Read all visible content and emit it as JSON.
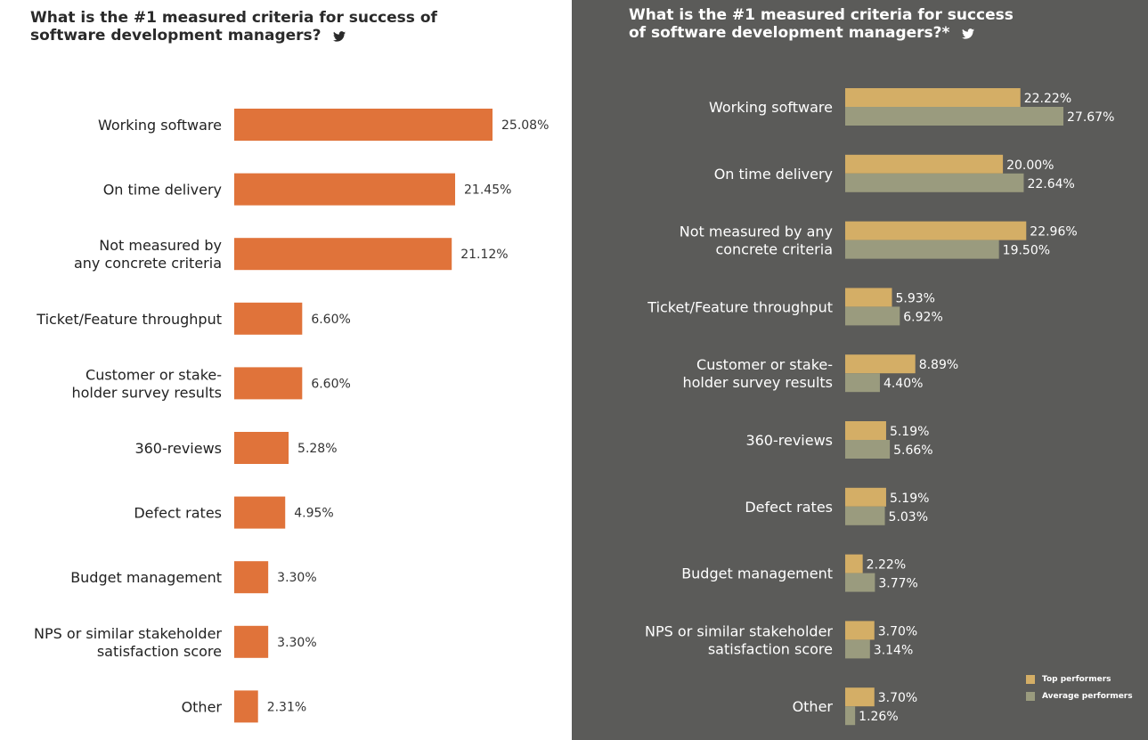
{
  "colors": {
    "left_bar": "#e0733a",
    "top_performers": "#d4ae66",
    "average_performers": "#9a9b7e",
    "left_background": "#ffffff",
    "right_background": "#5b5b59"
  },
  "icons": {
    "title_icon": "twitter-bird-icon"
  },
  "left": {
    "title_line1": "What is the #1 measured criteria for success of",
    "title_line2": "software development managers?"
  },
  "right": {
    "title_line1": "What is the #1 measured criteria for success",
    "title_line2": "of software development managers?*"
  },
  "legend": {
    "top_performers": "Top performers",
    "average_performers": "Average performers"
  },
  "chart_data": [
    {
      "type": "bar",
      "orientation": "horizontal",
      "title": "What is the #1 measured criteria for success of software development managers?",
      "categories": [
        "Working software",
        "On time delivery",
        "Not measured by any concrete criteria",
        "Ticket/Feature throughput",
        "Customer or stakeholder survey results",
        "360-reviews",
        "Defect rates",
        "Budget management",
        "NPS or similar stakeholder satisfaction score",
        "Other"
      ],
      "category_lines": [
        [
          "Working software"
        ],
        [
          "On time delivery"
        ],
        [
          "Not measured by",
          "any concrete criteria"
        ],
        [
          "Ticket/Feature throughput"
        ],
        [
          "Customer or stake-",
          "holder survey results"
        ],
        [
          "360-reviews"
        ],
        [
          "Defect rates"
        ],
        [
          "Budget management"
        ],
        [
          "NPS or similar stakeholder",
          "satisfaction score"
        ],
        [
          "Other"
        ]
      ],
      "values": [
        25.08,
        21.45,
        21.12,
        6.6,
        6.6,
        5.28,
        4.95,
        3.3,
        3.3,
        2.31
      ],
      "value_labels": [
        "25.08%",
        "21.45%",
        "21.12%",
        "6.60%",
        "6.60%",
        "5.28%",
        "4.95%",
        "3.30%",
        "3.30%",
        "2.31%"
      ],
      "unit": "%",
      "axis_visible": false,
      "grid": false
    },
    {
      "type": "bar",
      "orientation": "horizontal",
      "title": "What is the #1 measured criteria for success of software development managers?*",
      "categories": [
        "Working software",
        "On time delivery",
        "Not measured by any concrete criteria",
        "Ticket/Feature throughput",
        "Customer or stakeholder survey results",
        "360-reviews",
        "Defect rates",
        "Budget management",
        "NPS or similar stakeholder satisfaction score",
        "Other"
      ],
      "category_lines": [
        [
          "Working software"
        ],
        [
          "On time delivery"
        ],
        [
          "Not measured by any",
          "concrete criteria"
        ],
        [
          "Ticket/Feature throughput"
        ],
        [
          "Customer or stake-",
          "holder survey results"
        ],
        [
          "360-reviews"
        ],
        [
          "Defect rates"
        ],
        [
          "Budget management"
        ],
        [
          "NPS or similar stakeholder",
          "satisfaction score"
        ],
        [
          "Other"
        ]
      ],
      "series": [
        {
          "name": "Top performers",
          "values": [
            22.22,
            20.0,
            22.96,
            5.93,
            8.89,
            5.19,
            5.19,
            2.22,
            3.7,
            3.7
          ],
          "value_labels": [
            "22.22%",
            "20.00%",
            "22.96%",
            "5.93%",
            "8.89%",
            "5.19%",
            "5.19%",
            "2.22%",
            "3.70%",
            "3.70%"
          ]
        },
        {
          "name": "Average performers",
          "values": [
            27.67,
            22.64,
            19.5,
            6.92,
            4.4,
            5.66,
            5.03,
            3.77,
            3.14,
            1.26
          ],
          "value_labels": [
            "27.67%",
            "22.64%",
            "19.50%",
            "6.92%",
            "4.40%",
            "5.66%",
            "5.03%",
            "3.77%",
            "3.14%",
            "1.26%"
          ]
        }
      ],
      "unit": "%",
      "legend_position": "bottom-right",
      "axis_visible": false,
      "grid": false
    }
  ]
}
